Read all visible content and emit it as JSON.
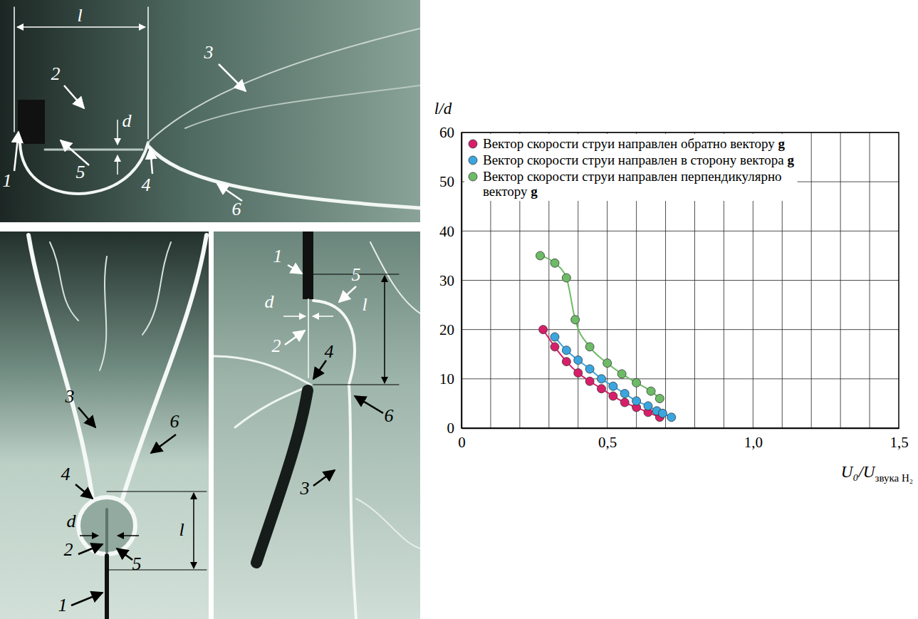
{
  "chart_data": {
    "type": "line",
    "marker": "circle",
    "ylabel": "l/d",
    "xlabel": "U₀/U",
    "xlabel_sub": "звука H₂",
    "xlim": [
      0,
      1.5
    ],
    "ylim": [
      0,
      60
    ],
    "xticks": [
      0,
      {
        "value": 0.5,
        "label": "0,5"
      },
      {
        "value": 1,
        "label": "1,0"
      },
      {
        "value": 1.5,
        "label": "1,5"
      }
    ],
    "yticks": [
      0,
      10,
      20,
      30,
      40,
      50,
      60
    ],
    "xgrid": [
      0.1,
      0.2,
      0.3,
      0.4,
      0.5,
      0.6,
      0.7,
      0.8,
      0.9,
      1.0,
      1.1,
      1.2,
      1.3,
      1.4
    ],
    "grid": true,
    "legend": "upper left",
    "series": [
      {
        "name": "Вектор скорости струи направлен обратно вектору g",
        "color": "#d81e6a",
        "x": [
          0.28,
          0.32,
          0.36,
          0.4,
          0.44,
          0.48,
          0.52,
          0.56,
          0.6,
          0.64,
          0.68
        ],
        "values": [
          20,
          16.5,
          13.5,
          11.2,
          9.5,
          8,
          6.5,
          5.2,
          4.2,
          3.2,
          2.2
        ]
      },
      {
        "name": "Вектор скорости струи направлен в сторону вектора g",
        "color": "#3aa6e0",
        "x": [
          0.32,
          0.36,
          0.4,
          0.44,
          0.48,
          0.52,
          0.56,
          0.6,
          0.64,
          0.67,
          0.69,
          0.72
        ],
        "values": [
          18.5,
          15.8,
          13.8,
          12,
          10,
          8.5,
          7,
          5.5,
          4.5,
          3.5,
          3,
          2.2
        ]
      },
      {
        "name": "Вектор скорости струи направлен перпендикулярно вектору g",
        "color": "#6dbb66",
        "x": [
          0.27,
          0.32,
          0.36,
          0.39,
          0.44,
          0.5,
          0.55,
          0.6,
          0.65,
          0.68
        ],
        "values": [
          35,
          33.5,
          30.5,
          22,
          16.5,
          13.2,
          11,
          9.2,
          7.5,
          6
        ]
      }
    ]
  },
  "photos": [
    {
      "labels": [
        "l",
        "d",
        "1",
        "2",
        "3",
        "4",
        "5",
        "6"
      ]
    },
    {
      "labels": [
        "3",
        "6",
        "4",
        "d",
        "2",
        "5",
        "1",
        "l"
      ]
    },
    {
      "labels": [
        "1",
        "d",
        "5",
        "2",
        "4",
        "6",
        "3",
        "l"
      ]
    }
  ]
}
